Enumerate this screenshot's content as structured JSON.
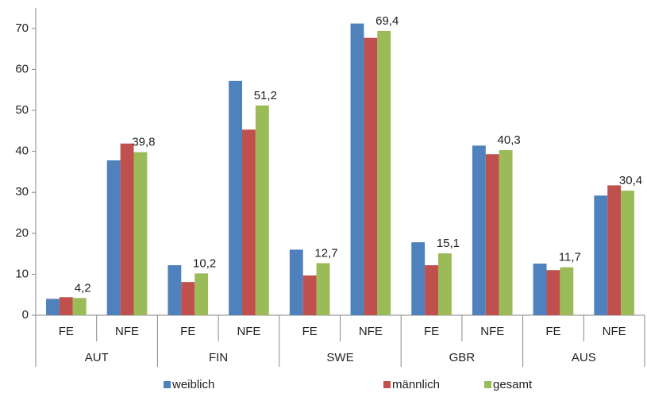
{
  "chart_data": {
    "type": "bar",
    "groups": [
      "AUT",
      "FIN",
      "SWE",
      "GBR",
      "AUS"
    ],
    "categories": [
      "FE",
      "NFE",
      "FE",
      "NFE",
      "FE",
      "NFE",
      "FE",
      "NFE",
      "FE",
      "NFE"
    ],
    "series": [
      {
        "name": "weiblich",
        "color": "#4f81bd",
        "values": [
          4.0,
          37.8,
          12.2,
          57.2,
          16.0,
          71.2,
          17.8,
          41.4,
          12.6,
          29.2
        ]
      },
      {
        "name": "männlich",
        "color": "#c0504d",
        "values": [
          4.4,
          41.9,
          8.1,
          45.3,
          9.7,
          67.7,
          12.2,
          39.3,
          11.0,
          31.7
        ]
      },
      {
        "name": "gesamt",
        "color": "#9bbb59",
        "values": [
          4.2,
          39.8,
          10.2,
          51.2,
          12.7,
          69.4,
          15.1,
          40.3,
          11.7,
          30.4
        ],
        "value_labels": [
          "4,2",
          "39,8",
          "10,2",
          "51,2",
          "12,7",
          "69,4",
          "15,1",
          "40,3",
          "11,7",
          "30,4"
        ]
      }
    ],
    "ylim": [
      0,
      75
    ],
    "yticks": [
      0,
      10,
      20,
      30,
      40,
      50,
      60,
      70
    ],
    "legend": "bottom"
  }
}
